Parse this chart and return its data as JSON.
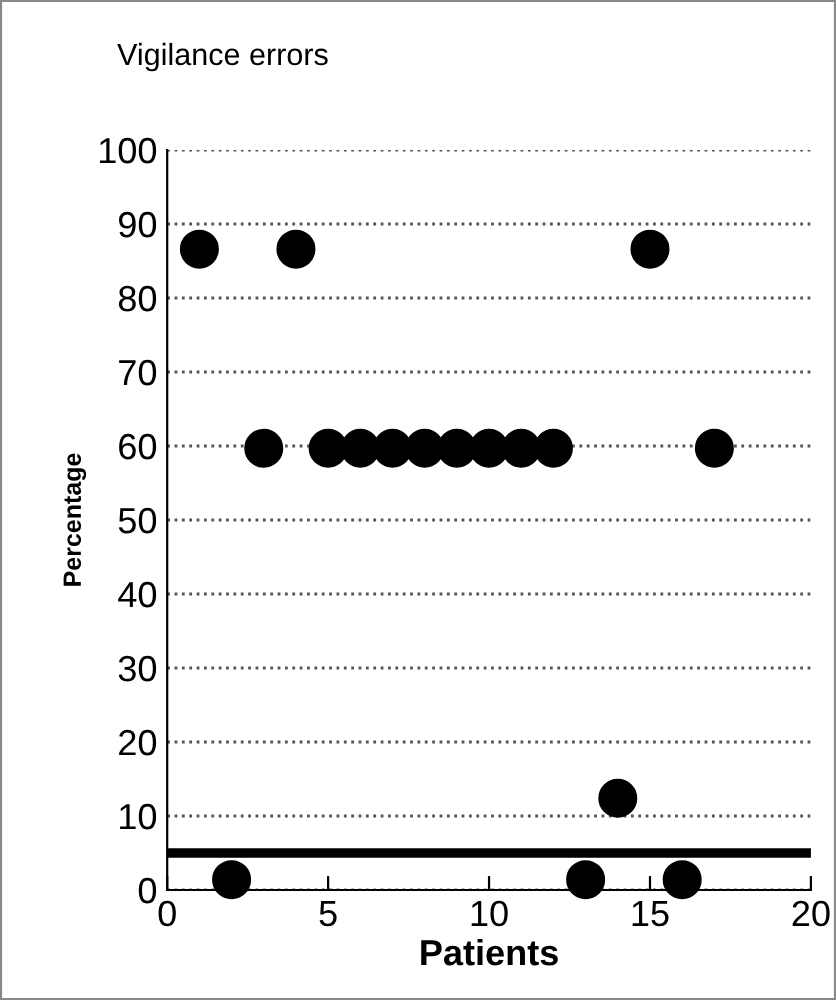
{
  "chart_data": {
    "type": "scatter",
    "title": "Vigilance errors",
    "xlabel": "Patients",
    "ylabel": "Percentage",
    "x": [
      1,
      2,
      3,
      4,
      5,
      6,
      7,
      8,
      9,
      10,
      11,
      12,
      13,
      14,
      15,
      16,
      17
    ],
    "series": [
      {
        "color": "#000000",
        "values": [
          86.6,
          1.4,
          59.7,
          86.6,
          59.7,
          59.7,
          59.7,
          59.7,
          59.7,
          59.7,
          59.7,
          59.7,
          1.4,
          12.4,
          86.6,
          1.4,
          59.7
        ]
      }
    ],
    "xlim": [
      0,
      20
    ],
    "xticks": [
      0,
      5,
      10,
      15,
      20
    ],
    "ylim": [
      0,
      100
    ],
    "yticks": [
      0,
      10,
      20,
      30,
      40,
      50,
      60,
      70,
      80,
      90,
      100
    ],
    "ref_lines": [
      {
        "axis": "y",
        "value": 5,
        "color": "#000000",
        "line_style": "solid"
      }
    ],
    "grid": "y",
    "marker": "circle",
    "legend": false
  }
}
